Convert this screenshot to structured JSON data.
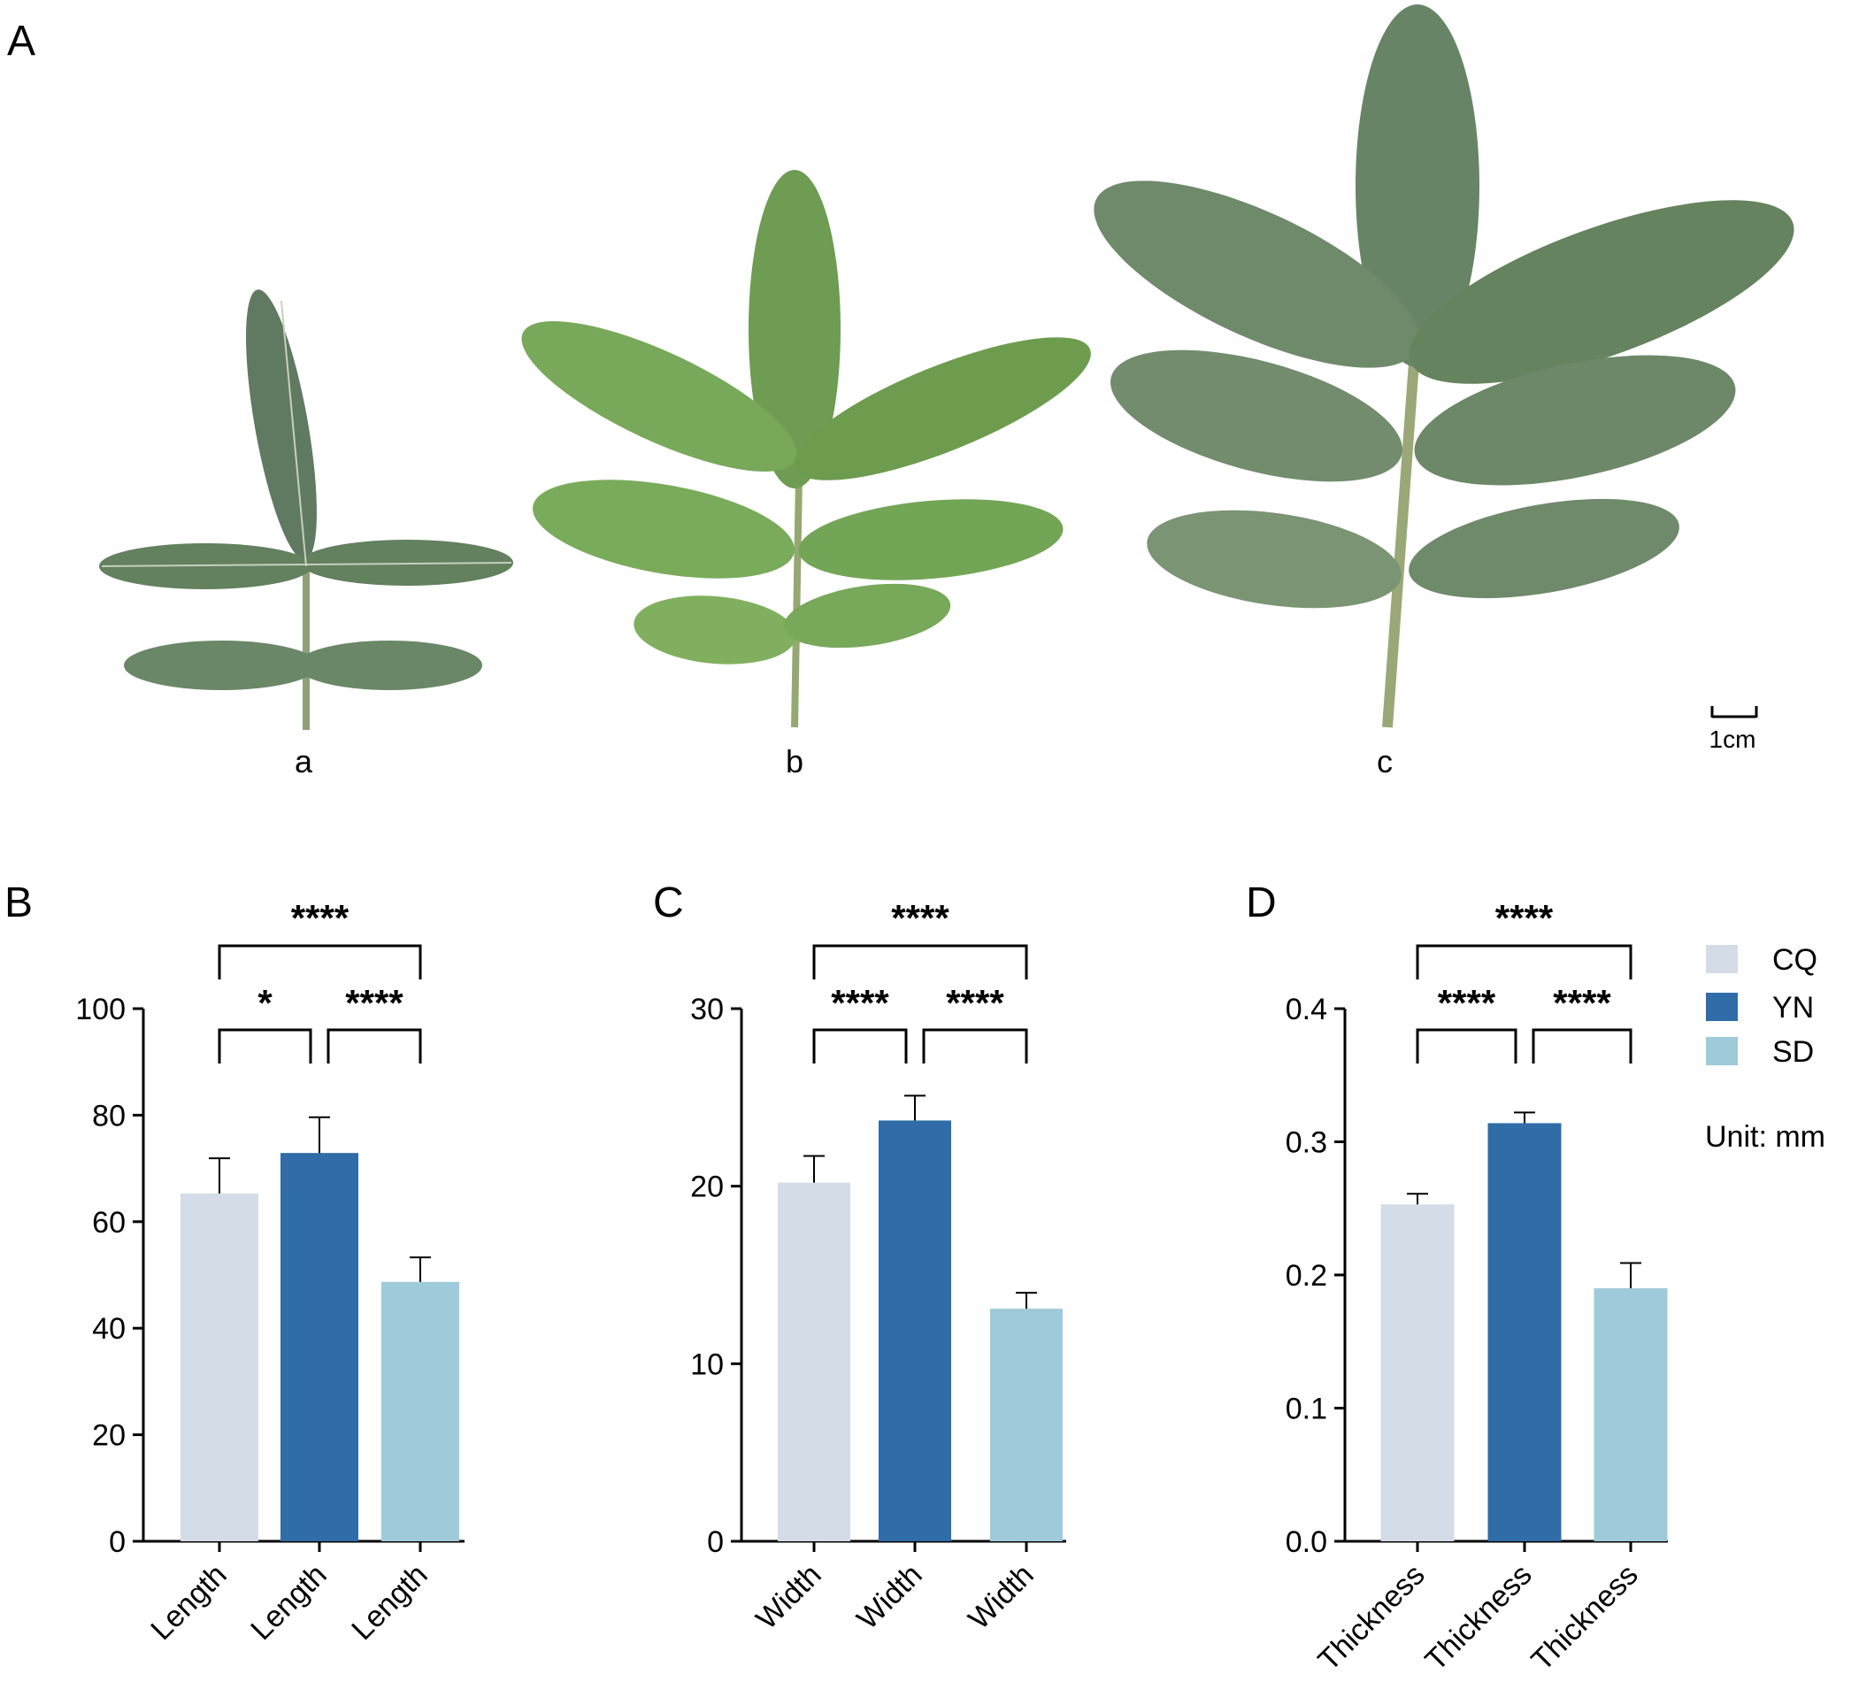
{
  "panel_a": {
    "label": "A",
    "leaf_labels": [
      "a",
      "b",
      "c"
    ],
    "scale_bar_label": "1cm",
    "leaf_colors": {
      "a": "#5f7a60",
      "b": "#6e9c52",
      "c": "#688466"
    }
  },
  "legend": {
    "entries": [
      {
        "name": "CQ",
        "color": "#d4dce8"
      },
      {
        "name": "YN",
        "color": "#2f6ca8"
      },
      {
        "name": "SD",
        "color": "#9ecad9"
      }
    ],
    "unit": "Unit: mm"
  },
  "chart_data": [
    {
      "type": "bar",
      "panel": "B",
      "categories": [
        "Length",
        "Length",
        "Length"
      ],
      "groups": [
        "CQ",
        "YN",
        "SD"
      ],
      "values": [
        65.3,
        72.9,
        48.7
      ],
      "errors": [
        6.6,
        6.7,
        4.6
      ],
      "ylim": [
        0,
        100
      ],
      "yticks": [
        0,
        20,
        40,
        60,
        80,
        100
      ],
      "ytick_labels": [
        "0",
        "20",
        "40",
        "60",
        "80",
        "100"
      ],
      "colors": [
        "#d4dce8",
        "#2f6ca8",
        "#9ecad9"
      ],
      "significance": [
        {
          "pair": [
            0,
            2
          ],
          "label": "****",
          "level": 2
        },
        {
          "pair": [
            0,
            1
          ],
          "label": "*",
          "level": 1
        },
        {
          "pair": [
            1,
            2
          ],
          "label": "****",
          "level": 1
        }
      ]
    },
    {
      "type": "bar",
      "panel": "C",
      "categories": [
        "Width",
        "Width",
        "Width"
      ],
      "groups": [
        "CQ",
        "YN",
        "SD"
      ],
      "values": [
        20.2,
        23.7,
        13.1
      ],
      "errors": [
        1.5,
        1.4,
        0.9
      ],
      "ylim": [
        0,
        30
      ],
      "yticks": [
        0,
        10,
        20,
        30
      ],
      "ytick_labels": [
        "0",
        "10",
        "20",
        "30"
      ],
      "colors": [
        "#d4dce8",
        "#2f6ca8",
        "#9ecad9"
      ],
      "significance": [
        {
          "pair": [
            0,
            2
          ],
          "label": "****",
          "level": 2
        },
        {
          "pair": [
            0,
            1
          ],
          "label": "****",
          "level": 1
        },
        {
          "pair": [
            1,
            2
          ],
          "label": "****",
          "level": 1
        }
      ]
    },
    {
      "type": "bar",
      "panel": "D",
      "categories": [
        "Thickness",
        "Thickness",
        "Thickness"
      ],
      "groups": [
        "CQ",
        "YN",
        "SD"
      ],
      "values": [
        0.253,
        0.314,
        0.19
      ],
      "errors": [
        0.008,
        0.008,
        0.019
      ],
      "ylim": [
        0,
        0.4
      ],
      "yticks": [
        0,
        0.1,
        0.2,
        0.3,
        0.4
      ],
      "ytick_labels": [
        "0.0",
        "0.1",
        "0.2",
        "0.3",
        "0.4"
      ],
      "colors": [
        "#d4dce8",
        "#2f6ca8",
        "#9ecad9"
      ],
      "significance": [
        {
          "pair": [
            0,
            2
          ],
          "label": "****",
          "level": 2
        },
        {
          "pair": [
            0,
            1
          ],
          "label": "****",
          "level": 1
        },
        {
          "pair": [
            1,
            2
          ],
          "label": "****",
          "level": 1
        }
      ]
    }
  ]
}
